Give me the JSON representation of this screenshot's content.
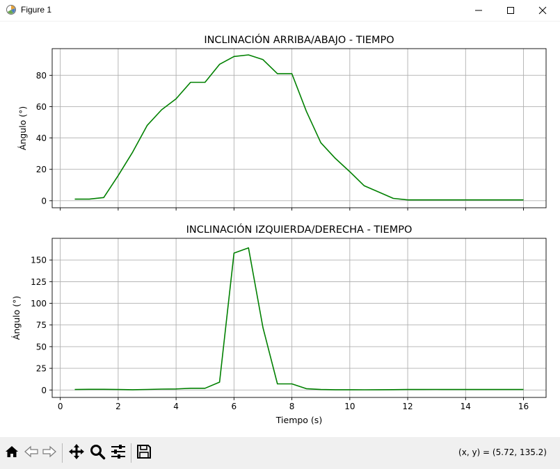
{
  "window": {
    "title": "Figure 1",
    "icons": [
      "figure-app-icon",
      "minimize-icon",
      "maximize-icon",
      "close-icon"
    ]
  },
  "toolbar": {
    "buttons": [
      {
        "name": "home",
        "icon": "home-icon"
      },
      {
        "name": "back",
        "icon": "back-arrow-icon"
      },
      {
        "name": "forward",
        "icon": "forward-arrow-icon"
      },
      {
        "name": "pan",
        "icon": "move-arrows-icon"
      },
      {
        "name": "zoom",
        "icon": "magnifier-icon"
      },
      {
        "name": "configure-subplots",
        "icon": "sliders-icon"
      },
      {
        "name": "save",
        "icon": "floppy-disk-icon"
      }
    ],
    "coords_text": "(x, y) = (5.72, 135.2)"
  },
  "colors": {
    "line": "#008000",
    "grid": "#b0b0b0",
    "toolbar_bg": "#f0f0f0"
  },
  "chart_data": [
    {
      "type": "line",
      "title": "INCLINACIÓN ARRIBA/ABAJO - TIEMPO",
      "xlabel": "",
      "ylabel": "Ángulo (°)",
      "xlim": [
        -0.28,
        16.78
      ],
      "ylim": [
        -4.5,
        97
      ],
      "xticks": [
        0,
        2,
        4,
        6,
        8,
        10,
        12,
        14,
        16
      ],
      "yticks": [
        0,
        20,
        40,
        60,
        80
      ],
      "grid": true,
      "x": [
        0.5,
        1.0,
        1.5,
        2.0,
        2.5,
        3.0,
        3.5,
        4.0,
        4.5,
        5.0,
        5.5,
        6.0,
        6.5,
        7.0,
        7.5,
        8.0,
        8.5,
        9.0,
        9.5,
        10.0,
        10.5,
        11.0,
        11.5,
        12.0,
        12.5,
        13.0,
        13.5,
        14.0,
        14.5,
        15.0,
        15.5,
        16.0
      ],
      "y": [
        1,
        1,
        2,
        16,
        31,
        48,
        58,
        65,
        75.5,
        75.5,
        87,
        92,
        93,
        90,
        81,
        81,
        57,
        37,
        27,
        18.5,
        9.5,
        5.5,
        1.5,
        0.5,
        0.5,
        0.5,
        0.5,
        0.5,
        0.5,
        0.5,
        0.5,
        0.5
      ]
    },
    {
      "type": "line",
      "title": "INCLINACIÓN IZQUIERDA/DERECHA - TIEMPO",
      "xlabel": "Tiempo (s)",
      "ylabel": "Ángulo (°)",
      "xlim": [
        -0.28,
        16.78
      ],
      "ylim": [
        -8.6,
        175
      ],
      "xticks": [
        0,
        2,
        4,
        6,
        8,
        10,
        12,
        14,
        16
      ],
      "yticks": [
        0,
        25,
        50,
        75,
        100,
        125,
        150
      ],
      "grid": true,
      "x": [
        0.5,
        1.0,
        1.5,
        2.0,
        2.5,
        3.0,
        3.5,
        4.0,
        4.5,
        5.0,
        5.5,
        6.0,
        6.5,
        7.0,
        7.5,
        8.0,
        8.5,
        9.0,
        9.5,
        10.0,
        10.5,
        11.0,
        11.5,
        12.0,
        12.5,
        13.0,
        13.5,
        14.0,
        14.5,
        15.0,
        15.5,
        16.0
      ],
      "y": [
        0.5,
        0.8,
        0.8,
        0.5,
        0.3,
        0.6,
        1.0,
        1.2,
        2.0,
        2.0,
        9.0,
        158,
        164,
        72,
        7,
        7,
        1.5,
        0.5,
        0.3,
        0.3,
        0.2,
        0.3,
        0.4,
        0.5,
        0.5,
        0.6,
        0.5,
        0.5,
        0.5,
        0.5,
        0.5,
        0.5
      ]
    }
  ]
}
